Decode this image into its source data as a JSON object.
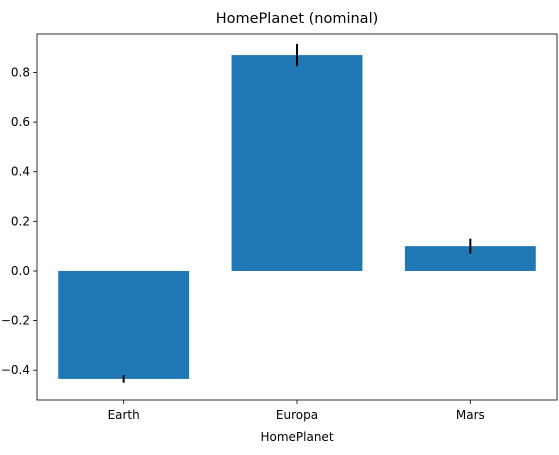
{
  "chart_data": {
    "type": "bar",
    "title": "HomePlanet (nominal)",
    "xlabel": "HomePlanet",
    "ylabel": "",
    "categories": [
      "Earth",
      "Europa",
      "Mars"
    ],
    "values": [
      -0.435,
      0.87,
      0.1
    ],
    "errors": [
      0.015,
      0.045,
      0.03
    ],
    "ylim": [
      -0.52,
      0.955
    ],
    "yticks": [
      -0.4,
      -0.2,
      0.0,
      0.2,
      0.4,
      0.6,
      0.8
    ],
    "ytick_labels": [
      "−0.4",
      "−0.2",
      "0.0",
      "0.2",
      "0.4",
      "0.6",
      "0.8"
    ],
    "bar_color": "#1f77b4",
    "error_color": "#000000",
    "grid": false,
    "legend": "none"
  }
}
